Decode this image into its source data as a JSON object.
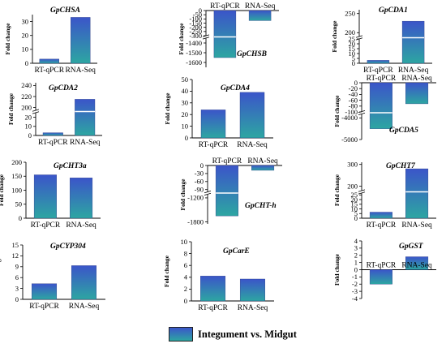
{
  "chart_data": [
    {
      "type": "bar",
      "title": "GpCHSA",
      "ylabel": "Fold change",
      "categories": [
        "RT-qPCR",
        "RNA-Seq"
      ],
      "values": [
        3,
        33
      ],
      "ylim": [
        0,
        35
      ],
      "ticks": [
        {
          "v": 0,
          "label": "0"
        },
        {
          "v": 10,
          "label": "10"
        },
        {
          "v": 20,
          "label": "20"
        },
        {
          "v": 30,
          "label": "30"
        }
      ]
    },
    {
      "type": "bar",
      "title": "GpCHSB",
      "ylabel": "Fold change",
      "categories": [
        "RT-qPCR",
        "RNA-Seq"
      ],
      "values": [
        -1550,
        -120
      ],
      "ticks": [
        {
          "v": 0,
          "label": "0"
        },
        {
          "v": -50,
          "label": "-50"
        },
        {
          "v": -100,
          "label": "-100"
        },
        {
          "v": -150,
          "label": "-150"
        },
        {
          "v": -200,
          "label": "-200"
        },
        {
          "v": -250,
          "label": "-250"
        },
        {
          "v": -300,
          "label": "-300"
        },
        {
          "v": -1400,
          "label": "-1400"
        },
        {
          "v": -1500,
          "label": "-1500"
        },
        {
          "v": -1600,
          "label": "-1600"
        }
      ]
    },
    {
      "type": "bar",
      "title": "GpCDA1",
      "ylabel": "Fold change",
      "categories": [
        "RT-qPCR",
        "RNA-Seq"
      ],
      "values": [
        3,
        230
      ],
      "ticks": [
        {
          "v": 0,
          "label": "0"
        },
        {
          "v": 5,
          "label": "5"
        },
        {
          "v": 10,
          "label": "10"
        },
        {
          "v": 15,
          "label": "15"
        },
        {
          "v": 20,
          "label": "20"
        },
        {
          "v": 25,
          "label": "25"
        },
        {
          "v": 200,
          "label": "200"
        },
        {
          "v": 250,
          "label": "250"
        }
      ]
    },
    {
      "type": "bar",
      "title": "GpCDA2",
      "ylabel": "Fold change",
      "categories": [
        "RT-qPCR",
        "RNA-Seq"
      ],
      "values": [
        3,
        215
      ],
      "ticks": [
        {
          "v": 0,
          "label": "0"
        },
        {
          "v": 10,
          "label": "10"
        },
        {
          "v": 20,
          "label": "20"
        },
        {
          "v": 200,
          "label": "200"
        },
        {
          "v": 220,
          "label": "220"
        },
        {
          "v": 240,
          "label": "240"
        }
      ]
    },
    {
      "type": "bar",
      "title": "GpCDA4",
      "ylabel": "Fold change",
      "categories": [
        "RT-qPCR",
        "RNA-Seq"
      ],
      "values": [
        24,
        39
      ],
      "ylim": [
        0,
        50
      ],
      "ticks": [
        {
          "v": 0,
          "label": "0"
        },
        {
          "v": 10,
          "label": "10"
        },
        {
          "v": 20,
          "label": "20"
        },
        {
          "v": 30,
          "label": "30"
        },
        {
          "v": 40,
          "label": "40"
        },
        {
          "v": 50,
          "label": "50"
        }
      ]
    },
    {
      "type": "bar",
      "title": "GpCDA5",
      "ylabel": "Fold change",
      "categories": [
        "RT-qPCR",
        "RNA-Seq"
      ],
      "values": [
        -4500,
        -72
      ],
      "ticks": [
        {
          "v": 0,
          "label": "0"
        },
        {
          "v": -20,
          "label": "-20"
        },
        {
          "v": -40,
          "label": "-40"
        },
        {
          "v": -60,
          "label": "-60"
        },
        {
          "v": -80,
          "label": "-80"
        },
        {
          "v": -100,
          "label": "-100"
        },
        {
          "v": -4000,
          "label": "-4000"
        },
        {
          "v": -5000,
          "label": "-5000"
        }
      ]
    },
    {
      "type": "bar",
      "title": "GpCHT3a",
      "ylabel": "Fold change",
      "categories": [
        "RT-qPCR",
        "RNA-Seq"
      ],
      "values": [
        155,
        144
      ],
      "ylim": [
        0,
        200
      ],
      "ticks": [
        {
          "v": 0,
          "label": "0"
        },
        {
          "v": 50,
          "label": "50"
        },
        {
          "v": 100,
          "label": "100"
        },
        {
          "v": 150,
          "label": "150"
        },
        {
          "v": 200,
          "label": "200"
        }
      ]
    },
    {
      "type": "bar",
      "title": "GpCHT-h",
      "ylabel": "Fold change",
      "categories": [
        "RT-qPCR",
        "RNA-Seq"
      ],
      "values": [
        -1650,
        -18
      ],
      "ticks": [
        {
          "v": 0,
          "label": "0"
        },
        {
          "v": -30,
          "label": "-30"
        },
        {
          "v": -60,
          "label": "-60"
        },
        {
          "v": -90,
          "label": "-90"
        },
        {
          "v": -1200,
          "label": "-1200"
        },
        {
          "v": -1800,
          "label": "-1800"
        }
      ]
    },
    {
      "type": "bar",
      "title": "GpCHT7",
      "ylabel": "Fold change",
      "categories": [
        "RT-qPCR",
        "RNA-Seq"
      ],
      "values": [
        6.5,
        280
      ],
      "ticks": [
        {
          "v": 0,
          "label": "0"
        },
        {
          "v": 5,
          "label": "5"
        },
        {
          "v": 10,
          "label": "10"
        },
        {
          "v": 15,
          "label": "15"
        },
        {
          "v": 20,
          "label": "20"
        },
        {
          "v": 25,
          "label": "25"
        },
        {
          "v": 200,
          "label": "200"
        },
        {
          "v": 300,
          "label": "300"
        }
      ]
    },
    {
      "type": "bar",
      "title": "GpCYP304",
      "ylabel": "Fold change",
      "categories": [
        "RT-qPCR",
        "RNA-Seq"
      ],
      "values": [
        4.3,
        9.3
      ],
      "ylim": [
        0,
        15
      ],
      "ticks": [
        {
          "v": 0,
          "label": "0"
        },
        {
          "v": 3,
          "label": "3"
        },
        {
          "v": 6,
          "label": "6"
        },
        {
          "v": 9,
          "label": "9"
        },
        {
          "v": 12,
          "label": "12"
        },
        {
          "v": 15,
          "label": "15"
        }
      ]
    },
    {
      "type": "bar",
      "title": "GpCarE",
      "ylabel": "Fold change",
      "categories": [
        "RT-qPCR",
        "RNA-Seq"
      ],
      "values": [
        4.2,
        3.7
      ],
      "ylim": [
        0,
        10
      ],
      "ticks": [
        {
          "v": 0,
          "label": "0"
        },
        {
          "v": 2,
          "label": "2"
        },
        {
          "v": 4,
          "label": "4"
        },
        {
          "v": 6,
          "label": "6"
        },
        {
          "v": 8,
          "label": "8"
        },
        {
          "v": 10,
          "label": "10"
        }
      ]
    },
    {
      "type": "bar",
      "title": "GpGST",
      "ylabel": "Fold change",
      "categories": [
        "RT-qPCR",
        "RNA-Seq"
      ],
      "values": [
        -2,
        1.8
      ],
      "ylim": [
        -4,
        4
      ],
      "ticks": [
        {
          "v": 4,
          "label": "4"
        },
        {
          "v": 3,
          "label": "3"
        },
        {
          "v": 2,
          "label": "2"
        },
        {
          "v": 1,
          "label": "1"
        },
        {
          "v": 0,
          "label": "0"
        },
        {
          "v": -1,
          "label": "-1"
        },
        {
          "v": -2,
          "label": "-2"
        },
        {
          "v": -3,
          "label": "-3"
        },
        {
          "v": -4,
          "label": "-4"
        }
      ]
    }
  ],
  "legend": {
    "label": "Integument vs. Midgut",
    "gradient_top": "#3b55c9",
    "gradient_bottom": "#2da6a2"
  }
}
